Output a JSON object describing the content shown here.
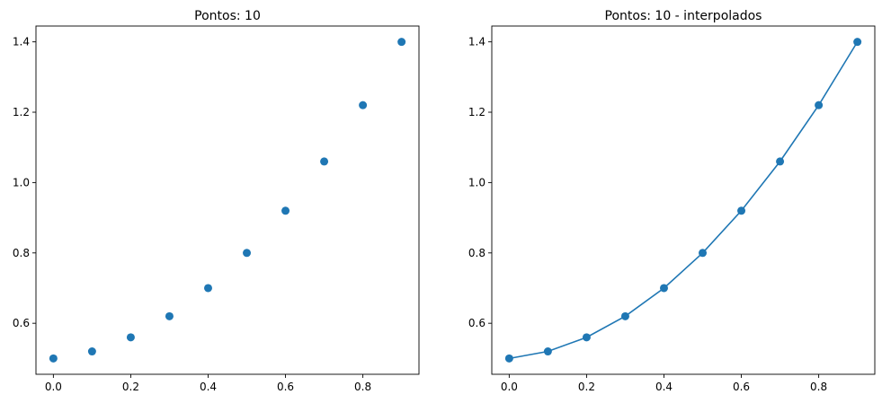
{
  "chart_data": [
    {
      "type": "scatter",
      "title": "Pontos: 10",
      "xlabel": "",
      "ylabel": "",
      "x": [
        0.0,
        0.1,
        0.2,
        0.3,
        0.4,
        0.5,
        0.6,
        0.7,
        0.8,
        0.9
      ],
      "series": [
        {
          "values": [
            0.5,
            0.52,
            0.56,
            0.62,
            0.7,
            0.8,
            0.92,
            1.06,
            1.22,
            1.4
          ]
        }
      ],
      "xlim": [
        -0.045,
        0.945
      ],
      "ylim": [
        0.455,
        1.445
      ],
      "xticks": [
        "0.0",
        "0.2",
        "0.4",
        "0.6",
        "0.8"
      ],
      "yticks": [
        "0.6",
        "0.8",
        "1.0",
        "1.2",
        "1.4"
      ],
      "grid": false,
      "color": "#1f77b4"
    },
    {
      "type": "line",
      "title": "Pontos: 10 - interpolados",
      "xlabel": "",
      "ylabel": "",
      "x": [
        0.0,
        0.1,
        0.2,
        0.3,
        0.4,
        0.5,
        0.6,
        0.7,
        0.8,
        0.9
      ],
      "series": [
        {
          "values": [
            0.5,
            0.52,
            0.56,
            0.62,
            0.7,
            0.8,
            0.92,
            1.06,
            1.22,
            1.4
          ]
        }
      ],
      "markers": true,
      "xlim": [
        -0.045,
        0.945
      ],
      "ylim": [
        0.455,
        1.445
      ],
      "xticks": [
        "0.0",
        "0.2",
        "0.4",
        "0.6",
        "0.8"
      ],
      "yticks": [
        "0.6",
        "0.8",
        "1.0",
        "1.2",
        "1.4"
      ],
      "grid": false,
      "color": "#1f77b4"
    }
  ]
}
